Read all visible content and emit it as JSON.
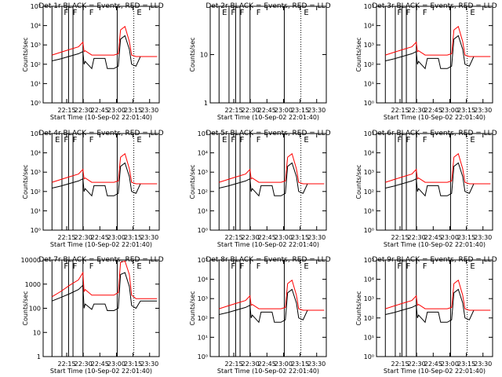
{
  "figure": {
    "background": "#ffffff",
    "line_colors": {
      "events": "#000000",
      "lld": "#ff0000"
    }
  },
  "chart_data": [
    {
      "type": "line",
      "title": "Det 1r BLACK = Events, RED = LLD",
      "xlabel": "Start Time (10-Sep-02 22:01:40)",
      "ylabel": "Counts/sec",
      "xticks": [
        "22:15",
        "22:30",
        "22:45",
        "23:00",
        "23:15",
        "23:30"
      ],
      "yscale": "log",
      "ylim": [
        1,
        100000
      ],
      "yticks": [
        "10⁰",
        "10¹",
        "10²",
        "10³",
        "10⁴",
        "10⁵"
      ],
      "markers": [
        "F",
        "F",
        "F",
        "E"
      ],
      "empty": false,
      "x": [
        0,
        8,
        16,
        24,
        28,
        29,
        30,
        36,
        38,
        48,
        50,
        56,
        60,
        62,
        66,
        70,
        72,
        76,
        80,
        84,
        88,
        95
      ],
      "series": [
        {
          "name": "Events",
          "color": "#000000",
          "values": [
            150,
            190,
            260,
            350,
            450,
            100,
            140,
            60,
            200,
            200,
            60,
            60,
            80,
            2000,
            3000,
            600,
            100,
            80,
            250,
            250,
            250,
            250
          ]
        },
        {
          "name": "LLD",
          "color": "#ff0000",
          "values": [
            300,
            420,
            580,
            800,
            1400,
            450,
            500,
            300,
            300,
            300,
            300,
            300,
            350,
            6000,
            9000,
            1500,
            300,
            250,
            250,
            250,
            250,
            250
          ]
        }
      ]
    },
    {
      "type": "line",
      "title": "Det 2r BLACK = Events, RED = LLD",
      "xlabel": "Start Time (10-Sep-02 22:01:40)",
      "ylabel": "Counts/sec",
      "xticks": [
        "22:15",
        "22:30",
        "22:45",
        "23:00",
        "23:15",
        "23:30"
      ],
      "yscale": "log",
      "ylim": [
        1,
        100
      ],
      "yticks": [
        "1",
        "10"
      ],
      "markers": [
        "E",
        "F",
        "F",
        "F",
        "E"
      ],
      "empty": true,
      "x": [],
      "series": []
    },
    {
      "type": "line",
      "title": "Det 3r BLACK = Events, RED = LLD",
      "xlabel": "Start Time (10-Sep-02 22:01:40)",
      "ylabel": "Counts/sec",
      "xticks": [
        "22:15",
        "22:30",
        "22:45",
        "23:00",
        "23:15",
        "23:30"
      ],
      "yscale": "log",
      "ylim": [
        1,
        100000
      ],
      "yticks": [
        "10⁰",
        "10¹",
        "10²",
        "10³",
        "10⁴",
        "10⁵"
      ],
      "markers": [
        "F",
        "F",
        "F",
        "E"
      ],
      "empty": false,
      "x": [
        0,
        8,
        16,
        24,
        28,
        29,
        30,
        36,
        38,
        48,
        50,
        56,
        60,
        62,
        66,
        70,
        72,
        76,
        80,
        84,
        88,
        95
      ],
      "series": [
        {
          "name": "Events",
          "color": "#000000",
          "values": [
            150,
            190,
            260,
            350,
            450,
            100,
            140,
            60,
            200,
            200,
            60,
            60,
            80,
            2000,
            3000,
            600,
            100,
            80,
            250,
            250,
            250,
            250
          ]
        },
        {
          "name": "LLD",
          "color": "#ff0000",
          "values": [
            300,
            420,
            580,
            800,
            1400,
            450,
            500,
            300,
            300,
            300,
            300,
            300,
            350,
            6000,
            9000,
            1500,
            300,
            250,
            250,
            250,
            250,
            250
          ]
        }
      ]
    },
    {
      "type": "line",
      "title": "Det 4r BLACK = Events, RED = LLD",
      "xlabel": "Start Time (10-Sep-02 22:01:40)",
      "ylabel": "Counts/sec",
      "xticks": [
        "22:15",
        "22:30",
        "22:45",
        "23:00",
        "23:15",
        "23:30"
      ],
      "yscale": "log",
      "ylim": [
        1,
        100000
      ],
      "yticks": [
        "10⁰",
        "10¹",
        "10²",
        "10³",
        "10⁴",
        "10⁵"
      ],
      "markers": [
        "E",
        "F",
        "F",
        "F",
        "E"
      ],
      "empty": false,
      "x": [
        0,
        8,
        16,
        24,
        28,
        29,
        30,
        36,
        38,
        48,
        50,
        56,
        60,
        62,
        66,
        70,
        72,
        76,
        80,
        84,
        88,
        95
      ],
      "series": [
        {
          "name": "Events",
          "color": "#000000",
          "values": [
            150,
            190,
            260,
            350,
            450,
            100,
            140,
            60,
            200,
            200,
            60,
            60,
            80,
            2000,
            3000,
            600,
            100,
            80,
            250,
            250,
            250,
            250
          ]
        },
        {
          "name": "LLD",
          "color": "#ff0000",
          "values": [
            300,
            420,
            580,
            800,
            1400,
            450,
            500,
            300,
            300,
            300,
            300,
            300,
            350,
            6000,
            9000,
            1500,
            300,
            250,
            250,
            250,
            250,
            250
          ]
        }
      ]
    },
    {
      "type": "line",
      "title": "Det 5r BLACK = Events, RED = LLD",
      "xlabel": "Start Time (10-Sep-02 22:01:40)",
      "ylabel": "Counts/sec",
      "xticks": [
        "22:15",
        "22:30",
        "22:45",
        "23:00",
        "23:15",
        "23:30"
      ],
      "yscale": "log",
      "ylim": [
        1,
        100000
      ],
      "yticks": [
        "10⁰",
        "10¹",
        "10²",
        "10³",
        "10⁴",
        "10⁵"
      ],
      "markers": [
        "E",
        "F",
        "F",
        "F",
        "E"
      ],
      "empty": false,
      "x": [
        0,
        8,
        16,
        24,
        28,
        29,
        30,
        36,
        38,
        48,
        50,
        56,
        60,
        62,
        66,
        70,
        72,
        76,
        80,
        84,
        88,
        95
      ],
      "series": [
        {
          "name": "Events",
          "color": "#000000",
          "values": [
            150,
            190,
            260,
            350,
            450,
            100,
            140,
            60,
            200,
            200,
            60,
            60,
            80,
            2000,
            3000,
            600,
            100,
            80,
            250,
            250,
            250,
            250
          ]
        },
        {
          "name": "LLD",
          "color": "#ff0000",
          "values": [
            300,
            420,
            580,
            800,
            1400,
            450,
            500,
            300,
            300,
            300,
            300,
            300,
            350,
            6000,
            9000,
            1500,
            300,
            250,
            250,
            250,
            250,
            250
          ]
        }
      ]
    },
    {
      "type": "line",
      "title": "Det 6r BLACK = Events, RED = LLD",
      "xlabel": "Start Time (10-Sep-02 22:01:40)",
      "ylabel": "Counts/sec",
      "xticks": [
        "22:15",
        "22:30",
        "22:45",
        "23:00",
        "23:15",
        "23:30"
      ],
      "yscale": "log",
      "ylim": [
        1,
        100000
      ],
      "yticks": [
        "10⁰",
        "10¹",
        "10²",
        "10³",
        "10⁴",
        "10⁵"
      ],
      "markers": [
        "F",
        "F",
        "F",
        "E"
      ],
      "empty": false,
      "x": [
        0,
        8,
        16,
        24,
        28,
        29,
        30,
        36,
        38,
        48,
        50,
        56,
        60,
        62,
        66,
        70,
        72,
        76,
        80,
        84,
        88,
        95
      ],
      "series": [
        {
          "name": "Events",
          "color": "#000000",
          "values": [
            150,
            190,
            260,
            350,
            450,
            100,
            140,
            60,
            200,
            200,
            60,
            60,
            80,
            2000,
            3000,
            600,
            100,
            80,
            250,
            250,
            250,
            250
          ]
        },
        {
          "name": "LLD",
          "color": "#ff0000",
          "values": [
            300,
            420,
            580,
            800,
            1400,
            450,
            500,
            300,
            300,
            300,
            300,
            300,
            350,
            6000,
            9000,
            1500,
            300,
            250,
            250,
            250,
            250,
            250
          ]
        }
      ]
    },
    {
      "type": "line",
      "title": "Det 7r BLACK = Events, RED = LLD",
      "xlabel": "Start Time (10-Sep-02 22:01:40)",
      "ylabel": "Counts/sec",
      "xticks": [
        "22:15",
        "22:30",
        "22:45",
        "23:00",
        "23:15",
        "23:30"
      ],
      "yscale": "log",
      "ylim": [
        1,
        10000
      ],
      "yticks": [
        "1",
        "10",
        "100",
        "1000",
        "10000"
      ],
      "markers": [
        "F",
        "F",
        "F",
        "E"
      ],
      "empty": false,
      "x": [
        0,
        8,
        16,
        24,
        28,
        29,
        30,
        36,
        38,
        48,
        50,
        56,
        60,
        62,
        66,
        70,
        72,
        76,
        80,
        84,
        88,
        95
      ],
      "series": [
        {
          "name": "Events",
          "color": "#000000",
          "values": [
            200,
            280,
            400,
            600,
            900,
            100,
            150,
            90,
            150,
            150,
            80,
            80,
            100,
            2500,
            3000,
            800,
            130,
            100,
            200,
            200,
            200,
            200
          ]
        },
        {
          "name": "LLD",
          "color": "#ff0000",
          "values": [
            300,
            500,
            900,
            1500,
            3000,
            500,
            600,
            350,
            350,
            350,
            350,
            350,
            450,
            8000,
            9000,
            2500,
            350,
            250,
            250,
            250,
            250,
            250
          ]
        }
      ]
    },
    {
      "type": "line",
      "title": "Det 8r BLACK = Events, RED = LLD",
      "xlabel": "Start Time (10-Sep-02 22:01:40)",
      "ylabel": "Counts/sec",
      "xticks": [
        "22:15",
        "22:30",
        "22:45",
        "23:00",
        "23:15",
        "23:30"
      ],
      "yscale": "log",
      "ylim": [
        1,
        100000
      ],
      "yticks": [
        "10⁰",
        "10¹",
        "10²",
        "10³",
        "10⁴",
        "10⁵"
      ],
      "markers": [
        "F",
        "F",
        "F",
        "E"
      ],
      "empty": false,
      "x": [
        0,
        8,
        16,
        24,
        28,
        29,
        30,
        36,
        38,
        48,
        50,
        56,
        60,
        62,
        66,
        70,
        72,
        76,
        80,
        84,
        88,
        95
      ],
      "series": [
        {
          "name": "Events",
          "color": "#000000",
          "values": [
            150,
            190,
            260,
            350,
            450,
            100,
            140,
            60,
            200,
            200,
            60,
            60,
            80,
            2000,
            3000,
            600,
            100,
            80,
            250,
            250,
            250,
            250
          ]
        },
        {
          "name": "LLD",
          "color": "#ff0000",
          "values": [
            300,
            420,
            580,
            800,
            1400,
            450,
            500,
            300,
            300,
            300,
            300,
            300,
            350,
            6000,
            9000,
            1500,
            300,
            250,
            250,
            250,
            250,
            250
          ]
        }
      ]
    },
    {
      "type": "line",
      "title": "Det 9r BLACK = Events, RED = LLD",
      "xlabel": "Start Time (10-Sep-02 22:01:40)",
      "ylabel": "Counts/sec",
      "xticks": [
        "22:15",
        "22:30",
        "22:45",
        "23:00",
        "23:15",
        "23:30"
      ],
      "yscale": "log",
      "ylim": [
        1,
        100000
      ],
      "yticks": [
        "10⁰",
        "10¹",
        "10²",
        "10³",
        "10⁴",
        "10⁵"
      ],
      "markers": [
        "F",
        "F",
        "F",
        "E"
      ],
      "empty": false,
      "x": [
        0,
        8,
        16,
        24,
        28,
        29,
        30,
        36,
        38,
        48,
        50,
        56,
        60,
        62,
        66,
        70,
        72,
        76,
        80,
        84,
        88,
        95
      ],
      "series": [
        {
          "name": "Events",
          "color": "#000000",
          "values": [
            150,
            190,
            260,
            350,
            450,
            100,
            140,
            60,
            200,
            200,
            60,
            60,
            80,
            2000,
            3000,
            600,
            100,
            80,
            250,
            250,
            250,
            250
          ]
        },
        {
          "name": "LLD",
          "color": "#ff0000",
          "values": [
            300,
            420,
            580,
            800,
            1400,
            450,
            500,
            300,
            300,
            300,
            300,
            300,
            350,
            6000,
            9000,
            1500,
            300,
            250,
            250,
            250,
            250,
            250
          ]
        }
      ]
    }
  ]
}
